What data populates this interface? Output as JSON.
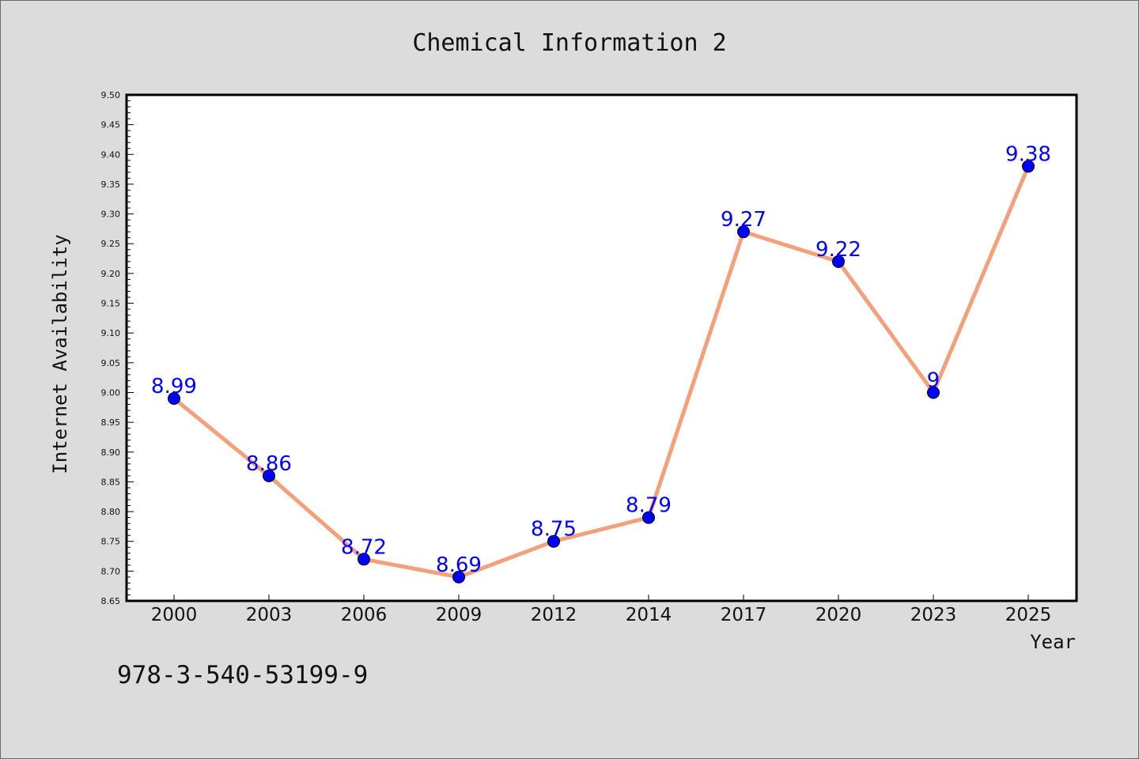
{
  "chart_data": {
    "type": "line",
    "title": "Chemical Information 2",
    "xlabel": "Year",
    "ylabel": "Internet Availability",
    "categories": [
      "2000",
      "2003",
      "2006",
      "2009",
      "2012",
      "2014",
      "2017",
      "2020",
      "2023",
      "2025"
    ],
    "series": [
      {
        "values": [
          8.99,
          8.86,
          8.72,
          8.69,
          8.75,
          8.79,
          9.27,
          9.22,
          9.0,
          9.38
        ],
        "data_labels": [
          "8.99",
          "8.86",
          "8.72",
          "8.69",
          "8.75",
          "8.79",
          "9.27",
          "9.22",
          "9",
          "9.38"
        ]
      }
    ],
    "ylim": [
      8.65,
      9.5
    ],
    "y_ticks": [
      "8.65",
      "8.70",
      "8.75",
      "8.80",
      "8.85",
      "8.90",
      "8.95",
      "9.00",
      "9.05",
      "9.10",
      "9.15",
      "9.20",
      "9.25",
      "9.30",
      "9.35",
      "9.40",
      "9.45",
      "9.50"
    ],
    "grid": false,
    "legend": "none",
    "colors": {
      "line": "#f4a07a",
      "marker": "#0000ff",
      "data_label": "#0000ff",
      "background": "#dcdcdc",
      "plot_background": "#ffffff"
    }
  },
  "footer": {
    "isbn": "978-3-540-53199-9"
  }
}
